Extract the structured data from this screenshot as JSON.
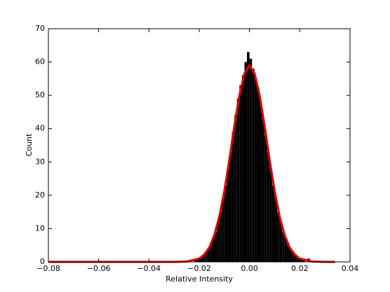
{
  "chart_data": {
    "type": "histogram",
    "xlabel": "Relative Intensity",
    "ylabel": "Count",
    "bins": [
      -0.025,
      -0.024,
      -0.023,
      -0.022,
      -0.021,
      -0.02,
      -0.019,
      -0.018,
      -0.017,
      -0.016,
      -0.015,
      -0.014,
      -0.013,
      -0.012,
      -0.011,
      -0.01,
      -0.009,
      -0.008,
      -0.007,
      -0.006,
      -0.005,
      -0.004,
      -0.003,
      -0.002,
      -0.001,
      0,
      0.001,
      0.002,
      0.003,
      0.004,
      0.005,
      0.006,
      0.007,
      0.008,
      0.009,
      0.01,
      0.011,
      0.012,
      0.013,
      0.014,
      0.015,
      0.016,
      0.017,
      0.018,
      0.019,
      0.02,
      0.021,
      0.022,
      0.023,
      0.024,
      0.025
    ],
    "values": [
      0,
      0,
      0,
      1,
      1,
      1,
      2,
      3,
      4,
      5,
      7,
      9,
      12,
      15,
      19,
      23,
      28,
      33,
      39,
      44,
      49,
      53,
      56,
      60,
      63,
      61,
      58,
      55,
      52,
      48,
      43,
      38,
      33,
      28,
      23,
      19,
      15,
      12,
      9,
      7,
      5,
      4,
      3,
      2,
      1,
      1,
      1,
      0,
      1,
      0
    ],
    "color": "#000000",
    "fit": {
      "x": [
        -0.08,
        -0.04,
        -0.03,
        -0.025,
        -0.02,
        -0.018,
        -0.016,
        -0.014,
        -0.012,
        -0.01,
        -0.008,
        -0.006,
        -0.004,
        -0.002,
        0,
        0.002,
        0.004,
        0.006,
        0.008,
        0.01,
        0.012,
        0.014,
        0.016,
        0.018,
        0.02,
        0.025,
        0.03,
        0.034
      ],
      "values": [
        0,
        0,
        0,
        0.1,
        1.0,
        2.2,
        4.3,
        8.0,
        13.6,
        21.3,
        30.7,
        40.9,
        50.1,
        56.6,
        59,
        56.6,
        50.1,
        40.9,
        30.7,
        21.3,
        13.6,
        8.0,
        4.3,
        2.2,
        1.0,
        0.1,
        0,
        0
      ],
      "color": "#e00000"
    },
    "xlim": [
      -0.08,
      0.04
    ],
    "xticks": [
      {
        "value": -0.08,
        "label": "−0.08"
      },
      {
        "value": -0.06,
        "label": "−0.06"
      },
      {
        "value": -0.04,
        "label": "−0.04"
      },
      {
        "value": -0.02,
        "label": "−0.02"
      },
      {
        "value": 0,
        "label": "0.00"
      },
      0.02,
      0.04
    ],
    "ylim": [
      0,
      70
    ],
    "yticks": [
      0,
      10,
      20,
      30,
      40,
      50,
      60,
      70
    ],
    "grid": false
  }
}
